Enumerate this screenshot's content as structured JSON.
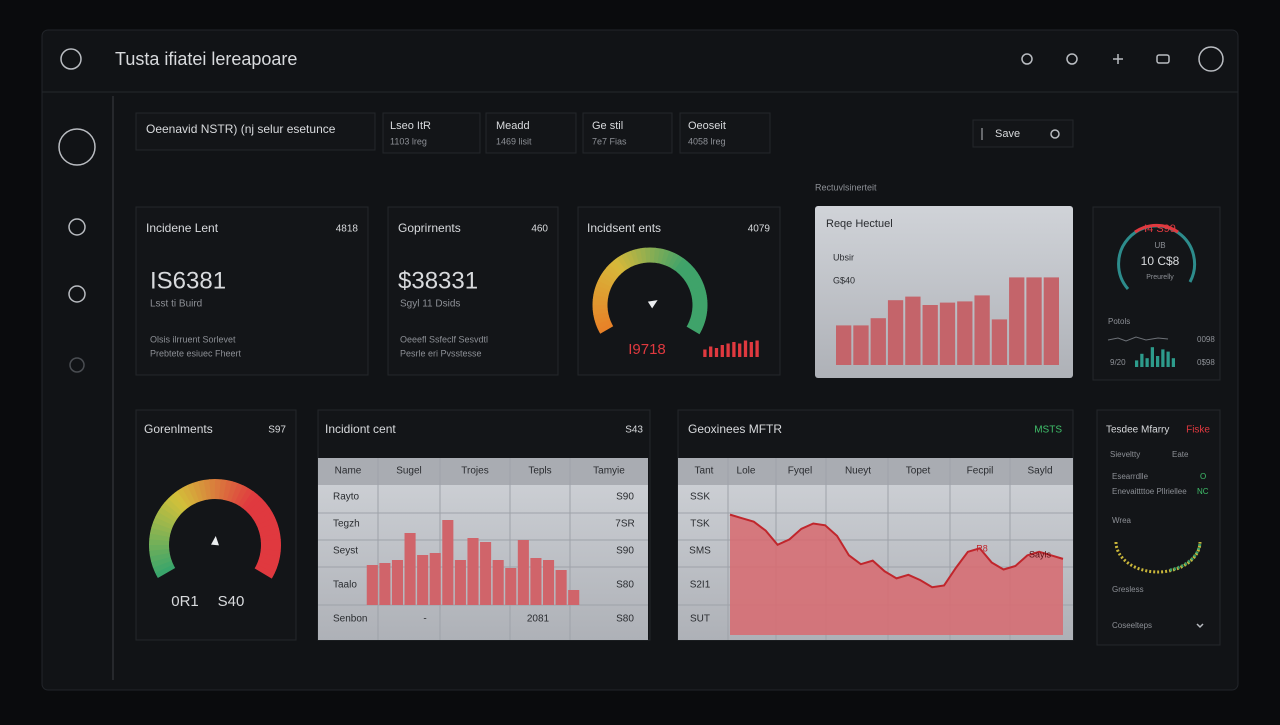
{
  "header": {
    "title": "Tusta ifiatei lereapoare"
  },
  "toolbar": {
    "title": "Oeenavid NSTR) (nj selur esetunce",
    "stats": [
      {
        "label": "Lseo ItR",
        "value": "1103 lreg"
      },
      {
        "label": "Meadd",
        "value": "1469 lisit"
      },
      {
        "label": "Ge stil",
        "value": "7e7 Fias"
      },
      {
        "label": "Oeoseit",
        "value": "4058 lreg"
      }
    ],
    "save": "Save"
  },
  "cards": [
    {
      "title": "Incidene Lent",
      "badge": "4818",
      "value": "IS6381",
      "sub": "Lsst ti Buird",
      "notes": [
        "Olsis ilrruent Sorlevet",
        "Prebtete esiuec Fheert"
      ]
    },
    {
      "title": "Goprirnents",
      "badge": "460",
      "value": "$38331",
      "sub": "Sgyl 11 Dsids",
      "notes": [
        "Oeeefl Ssfeclf Sesvdtl",
        "Pesrle eri Pvsstesse"
      ]
    }
  ],
  "gauge_card": {
    "title": "Incidsent ents",
    "badge": "4079",
    "label": "I9718",
    "gauge": {
      "value": 74,
      "lim": [
        0,
        100
      ]
    },
    "bars": {
      "values": [
        5,
        7,
        6,
        8,
        9,
        10,
        9,
        11,
        10,
        11
      ],
      "ylim": [
        0,
        12
      ]
    }
  },
  "bar_panel": {
    "section": "Rectuvlsinerteit",
    "title": "Reqe Hectuel",
    "labels": [
      "Ubsir",
      "G$40"
    ],
    "values": [
      33,
      33,
      39,
      54,
      57,
      50,
      52,
      53,
      58,
      38,
      73,
      73,
      73
    ],
    "ylim": [
      0,
      100
    ]
  },
  "status_panel": {
    "value": "I4 S99",
    "unit": "UB",
    "reading": "10 C$8",
    "caption": "Preurelly",
    "legend": "Potols",
    "left": "9/20",
    "right": [
      "0098",
      "0$98"
    ],
    "bars": {
      "values": [
        3,
        6,
        4,
        9,
        5,
        8,
        7,
        4
      ],
      "ylim": [
        0,
        10
      ]
    }
  },
  "gauge_panel": {
    "title": "Gorenlments",
    "badge": "S97",
    "labels": [
      "0R1",
      "S40"
    ],
    "gauge": {
      "value": 52,
      "lim": [
        0,
        100
      ]
    }
  },
  "table_panel": {
    "title": "Incidiont cent",
    "badge": "S43",
    "columns": [
      "Name",
      "Sugel",
      "Trojes",
      "Tepls",
      "Tamyie"
    ],
    "rows": [
      {
        "name": "Rayto",
        "value": "S90"
      },
      {
        "name": "Tegzh",
        "value": "7SR"
      },
      {
        "name": "Seyst",
        "value": "S90"
      },
      {
        "name": "Taalo",
        "value": "S80"
      }
    ],
    "footer": {
      "name": "Senbon",
      "dash": "-",
      "total": "2081",
      "value": "S80"
    },
    "bars": {
      "values": [
        40,
        42,
        45,
        72,
        50,
        52,
        85,
        45,
        67,
        63,
        45,
        37,
        65,
        47,
        45,
        35,
        15
      ],
      "ylim": [
        0,
        100
      ]
    }
  },
  "line_panel": {
    "title": "Geoxinees MFTR",
    "badge": "MSTS",
    "columns": [
      "Tant",
      "Lole",
      "Fyqel",
      "Nueyt",
      "Topet",
      "Fecpil",
      "Sayld"
    ],
    "rows": [
      "SSK",
      "TSK",
      "SMS",
      "S2I1",
      "SUT"
    ],
    "annotations": [
      "R8",
      "Sayls"
    ],
    "values": [
      68,
      66,
      64,
      59,
      51,
      54,
      60,
      63,
      62,
      56,
      45,
      40,
      42,
      36,
      32,
      34,
      31,
      27,
      28,
      38,
      47,
      49,
      41,
      37,
      39,
      45,
      47,
      45,
      43
    ],
    "ylim": [
      0,
      100
    ]
  },
  "list_panel": {
    "title": "Tesdee Mfarry",
    "badge": "Fiske",
    "subtitle": "Sieveltty",
    "sub_badge": "Eate",
    "items": [
      {
        "label": "Esearrdlle",
        "value": "O"
      },
      {
        "label": "Enevaittttoe Pllriellee",
        "value": "NC"
      }
    ],
    "gauge_label": "Wrea",
    "footer": "Gresless",
    "select": "Coseelteps"
  }
}
